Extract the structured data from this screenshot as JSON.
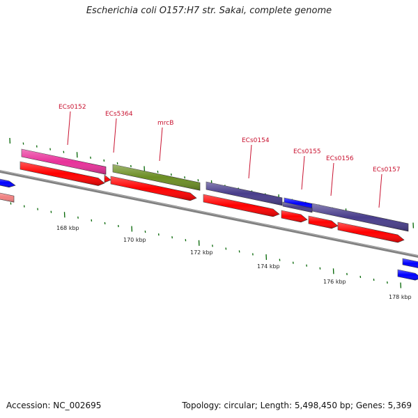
{
  "title": "Escherichia coli O157:H7 str. Sakai, complete genome",
  "footer": {
    "accession": "Accession: NC_002695",
    "stats": "Topology: circular; Length: 5,498,450 bp; Genes: 5,369"
  },
  "colors": {
    "backbone": "#808080",
    "cds_forward": "#ff0000",
    "cds_reverse": "#ff0000",
    "gene_pink": "#e8319a",
    "gene_olive": "#6b8e23",
    "gene_slate": "#483d8b",
    "gene_blue": "#0000ff",
    "gene_salmon": "#f08080",
    "tick": "#006400",
    "label": "#c8102e"
  },
  "scale": {
    "labels": [
      "168 kbp",
      "170 kbp",
      "172 kbp",
      "174 kbp",
      "176 kbp",
      "178 kbp"
    ]
  },
  "gene_labels": [
    "ECs0152",
    "ECs5364",
    "mrcB",
    "ECs0154",
    "ECs0155",
    "ECs0156",
    "ECs0157"
  ]
}
